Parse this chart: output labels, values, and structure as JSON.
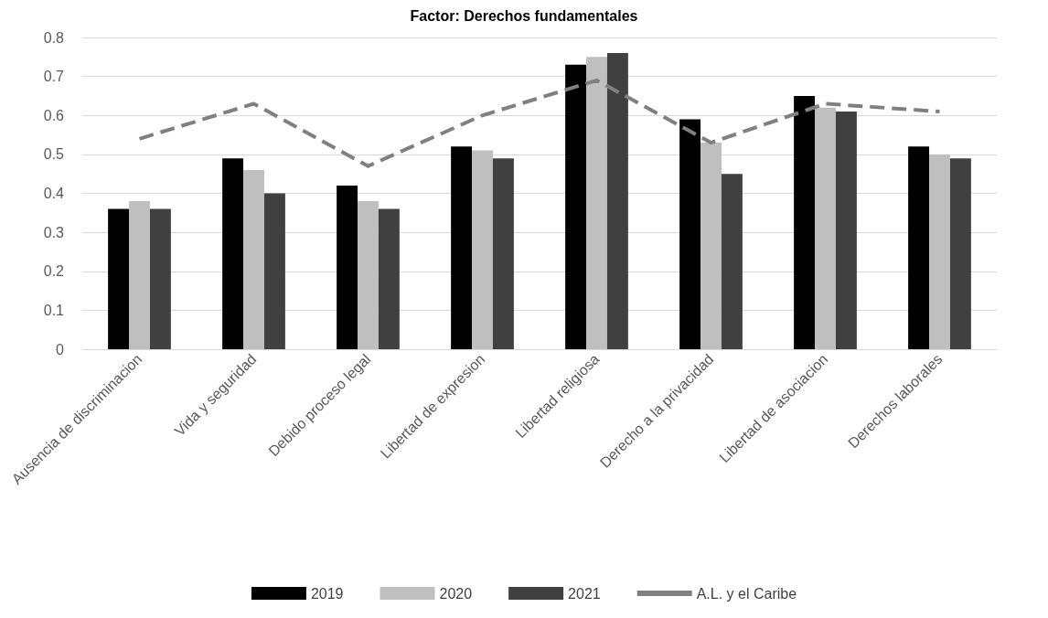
{
  "chart_data": {
    "type": "bar",
    "title": "Factor: Derechos fundamentales",
    "categories": [
      "Ausencia de discriminacion",
      "Vida y seguridad",
      "Debido proceso legal",
      "Libertad de expresion",
      "Libertad religiosa",
      "Derecho a la privacidad",
      "Libertad de asociacion",
      "Derechos laborales"
    ],
    "series": [
      {
        "name": "2019",
        "color": "#000000",
        "values": [
          0.36,
          0.49,
          0.42,
          0.52,
          0.73,
          0.59,
          0.65,
          0.52
        ]
      },
      {
        "name": "2020",
        "color": "#bfbfbf",
        "values": [
          0.38,
          0.46,
          0.38,
          0.51,
          0.75,
          0.53,
          0.62,
          0.5
        ]
      },
      {
        "name": "2021",
        "color": "#404040",
        "values": [
          0.36,
          0.4,
          0.36,
          0.49,
          0.76,
          0.45,
          0.61,
          0.49
        ]
      },
      {
        "name": "A.L. y el Caribe",
        "type": "line",
        "color": "#808080",
        "line_style": "dashed",
        "marker": "none",
        "values": [
          0.54,
          0.63,
          0.47,
          0.6,
          0.69,
          0.53,
          0.63,
          0.61
        ]
      }
    ],
    "ylim": [
      0,
      0.8
    ],
    "yticks": [
      0,
      0.1,
      0.2,
      0.3,
      0.4,
      0.5,
      0.6,
      0.7,
      0.8
    ],
    "grid": "y",
    "legend": "bottom"
  }
}
